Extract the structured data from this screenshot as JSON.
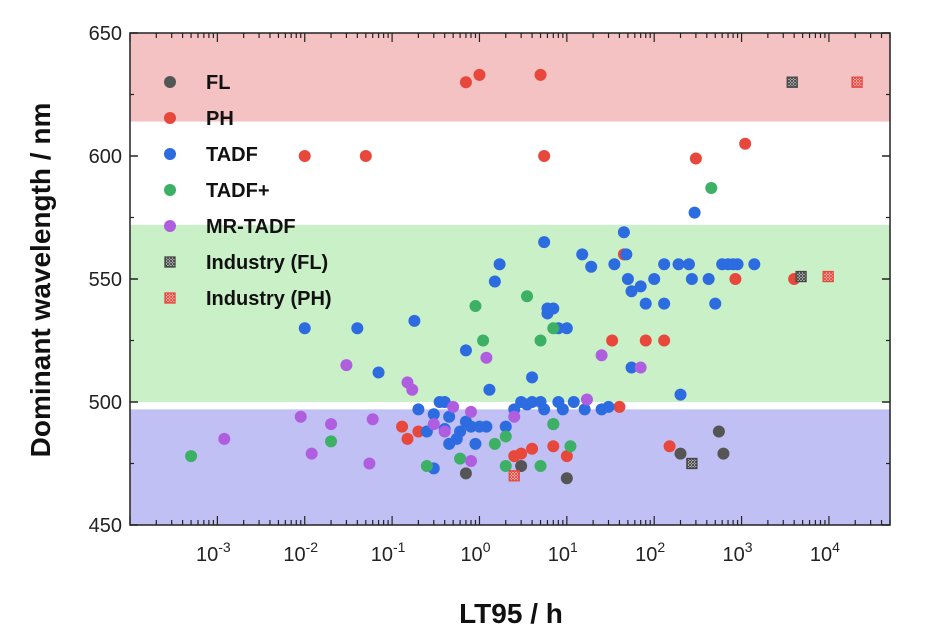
{
  "chart_data": {
    "type": "scatter",
    "xlabel": "LT95 / h",
    "ylabel": "Dominant wavelength / nm",
    "x_scale": "log",
    "xlim": [
      0.0001,
      50000
    ],
    "ylim": [
      450,
      650
    ],
    "x_ticks": [
      {
        "value": 0.001,
        "base": "10",
        "exp": "-3"
      },
      {
        "value": 0.01,
        "base": "10",
        "exp": "-2"
      },
      {
        "value": 0.1,
        "base": "10",
        "exp": "-1"
      },
      {
        "value": 1,
        "base": "10",
        "exp": "0"
      },
      {
        "value": 10,
        "base": "10",
        "exp": "1"
      },
      {
        "value": 100,
        "base": "10",
        "exp": "2"
      },
      {
        "value": 1000,
        "base": "10",
        "exp": "3"
      },
      {
        "value": 10000,
        "base": "10",
        "exp": "4"
      }
    ],
    "y_ticks": [
      "450",
      "500",
      "550",
      "600",
      "650"
    ],
    "bands": [
      {
        "from": 614,
        "to": 650,
        "color": "#f4c2c2"
      },
      {
        "from": 500,
        "to": 572,
        "color": "#c9f0c6"
      },
      {
        "from": 450,
        "to": 497,
        "color": "#c0c0f4"
      }
    ],
    "legend_position": "top-left",
    "series": [
      {
        "name": "FL",
        "color": "#555555",
        "marker": "dot",
        "points": [
          [
            0.7,
            471
          ],
          [
            3,
            474
          ],
          [
            10,
            469
          ],
          [
            200,
            479
          ],
          [
            550,
            488
          ],
          [
            620,
            479
          ]
        ]
      },
      {
        "name": "PH",
        "color": "#e8473c",
        "marker": "dot",
        "points": [
          [
            0.7,
            630
          ],
          [
            1,
            633
          ],
          [
            5,
            633
          ],
          [
            0.01,
            600
          ],
          [
            0.05,
            600
          ],
          [
            5.5,
            600
          ],
          [
            300,
            599
          ],
          [
            1100,
            605
          ],
          [
            850,
            550
          ],
          [
            4000,
            550
          ],
          [
            45,
            560
          ],
          [
            33,
            525
          ],
          [
            80,
            525
          ],
          [
            130,
            525
          ],
          [
            40,
            498
          ],
          [
            0.13,
            490
          ],
          [
            0.15,
            485
          ],
          [
            0.2,
            488
          ],
          [
            2.5,
            478
          ],
          [
            3,
            479
          ],
          [
            4,
            481
          ],
          [
            7,
            482
          ],
          [
            10,
            478
          ],
          [
            150,
            482
          ]
        ]
      },
      {
        "name": "TADF",
        "color": "#2d6be0",
        "marker": "dot",
        "points": [
          [
            0.01,
            530
          ],
          [
            0.04,
            530
          ],
          [
            0.07,
            512
          ],
          [
            0.18,
            533
          ],
          [
            0.2,
            497
          ],
          [
            0.25,
            488
          ],
          [
            0.3,
            495
          ],
          [
            0.3,
            473
          ],
          [
            0.35,
            500
          ],
          [
            0.4,
            500
          ],
          [
            0.4,
            489
          ],
          [
            0.45,
            494
          ],
          [
            0.45,
            483
          ],
          [
            0.55,
            485
          ],
          [
            0.6,
            488
          ],
          [
            0.7,
            521
          ],
          [
            0.7,
            492
          ],
          [
            0.8,
            490
          ],
          [
            0.9,
            483
          ],
          [
            1,
            490
          ],
          [
            1.3,
            505
          ],
          [
            1.5,
            549
          ],
          [
            1.7,
            556
          ],
          [
            1.2,
            490
          ],
          [
            2,
            490
          ],
          [
            2.5,
            497
          ],
          [
            3,
            500
          ],
          [
            3.5,
            499
          ],
          [
            4,
            510
          ],
          [
            4,
            500
          ],
          [
            5,
            500
          ],
          [
            5.5,
            565
          ],
          [
            6,
            538
          ],
          [
            6,
            536
          ],
          [
            7,
            538
          ],
          [
            8,
            530
          ],
          [
            5.5,
            497
          ],
          [
            7,
            491
          ],
          [
            10,
            530
          ],
          [
            8,
            500
          ],
          [
            9,
            497
          ],
          [
            12,
            500
          ],
          [
            15,
            560
          ],
          [
            16,
            497
          ],
          [
            19,
            555
          ],
          [
            25,
            497
          ],
          [
            30,
            498
          ],
          [
            35,
            556
          ],
          [
            45,
            569
          ],
          [
            48,
            560
          ],
          [
            50,
            550
          ],
          [
            55,
            545
          ],
          [
            70,
            547
          ],
          [
            80,
            540
          ],
          [
            55,
            514
          ],
          [
            100,
            550
          ],
          [
            130,
            540
          ],
          [
            130,
            556
          ],
          [
            190,
            556
          ],
          [
            250,
            556
          ],
          [
            270,
            550
          ],
          [
            290,
            577
          ],
          [
            200,
            503
          ],
          [
            420,
            550
          ],
          [
            500,
            540
          ],
          [
            600,
            556
          ],
          [
            700,
            556
          ],
          [
            800,
            556
          ],
          [
            900,
            556
          ],
          [
            1400,
            556
          ]
        ]
      },
      {
        "name": "TADF+",
        "color": "#3cb064",
        "marker": "dot",
        "points": [
          [
            0.0005,
            478
          ],
          [
            0.02,
            484
          ],
          [
            0.25,
            474
          ],
          [
            0.6,
            477
          ],
          [
            0.9,
            539
          ],
          [
            1.1,
            525
          ],
          [
            1.5,
            483
          ],
          [
            2,
            486
          ],
          [
            2,
            474
          ],
          [
            3.5,
            543
          ],
          [
            5,
            525
          ],
          [
            7,
            530
          ],
          [
            7,
            491
          ],
          [
            5,
            474
          ],
          [
            11,
            482
          ],
          [
            450,
            587
          ]
        ]
      },
      {
        "name": "MR-TADF",
        "color": "#b05ee0",
        "marker": "dot",
        "points": [
          [
            0.0012,
            485
          ],
          [
            0.009,
            494
          ],
          [
            0.012,
            479
          ],
          [
            0.02,
            491
          ],
          [
            0.03,
            515
          ],
          [
            0.055,
            475
          ],
          [
            0.06,
            493
          ],
          [
            0.15,
            508
          ],
          [
            0.17,
            505
          ],
          [
            0.3,
            491
          ],
          [
            0.4,
            488
          ],
          [
            0.5,
            498
          ],
          [
            0.8,
            476
          ],
          [
            0.8,
            496
          ],
          [
            1.2,
            518
          ],
          [
            2.5,
            494
          ],
          [
            17,
            501
          ],
          [
            25,
            519
          ],
          [
            70,
            514
          ]
        ]
      },
      {
        "name": "Industry (FL)",
        "color": "#444444",
        "marker": "hatched",
        "points": [
          [
            3800,
            630
          ],
          [
            4800,
            551
          ],
          [
            270,
            475
          ]
        ]
      },
      {
        "name": "Industry (PH)",
        "color": "#e8473c",
        "marker": "hatched",
        "points": [
          [
            21000,
            630
          ],
          [
            9800,
            551
          ],
          [
            2.5,
            470
          ]
        ]
      }
    ]
  }
}
